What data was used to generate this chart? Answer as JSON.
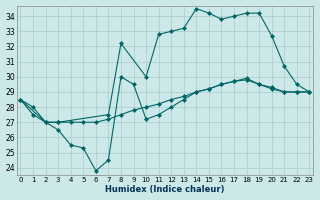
{
  "xlabel": "Humidex (Indice chaleur)",
  "bg_color": "#cce8e8",
  "grid_color": "#aacccc",
  "line_color": "#006666",
  "xlim": [
    -0.3,
    23.3
  ],
  "ylim": [
    23.5,
    34.7
  ],
  "xticks": [
    0,
    1,
    2,
    3,
    4,
    5,
    6,
    7,
    8,
    9,
    10,
    11,
    12,
    13,
    14,
    15,
    16,
    17,
    18,
    19,
    20,
    21,
    22,
    23
  ],
  "yticks": [
    24,
    25,
    26,
    27,
    28,
    29,
    30,
    31,
    32,
    33,
    34
  ],
  "series": [
    {
      "x": [
        0,
        1,
        2,
        3,
        4,
        5,
        6,
        7,
        8,
        9,
        10,
        11,
        12,
        13,
        14,
        15,
        16,
        17,
        18,
        19,
        20,
        21,
        22,
        23
      ],
      "y": [
        28.5,
        27.5,
        27.0,
        27.0,
        27.0,
        27.0,
        27.0,
        27.2,
        27.5,
        27.8,
        28.0,
        28.2,
        28.5,
        28.7,
        29.0,
        29.2,
        29.5,
        29.7,
        29.9,
        29.5,
        29.2,
        29.0,
        29.0,
        29.0
      ]
    },
    {
      "x": [
        0,
        1,
        2,
        3,
        4,
        5,
        6,
        7,
        8,
        9,
        10,
        11,
        12,
        13,
        14,
        15,
        16,
        17,
        18,
        19,
        20,
        21,
        22,
        23
      ],
      "y": [
        28.5,
        28.0,
        27.0,
        26.5,
        25.5,
        25.3,
        23.8,
        24.5,
        30.0,
        29.5,
        27.2,
        27.5,
        28.0,
        28.5,
        29.0,
        29.2,
        29.5,
        29.7,
        29.8,
        29.5,
        29.3,
        29.0,
        29.0,
        29.0
      ]
    },
    {
      "x": [
        0,
        2,
        3,
        7,
        8,
        10,
        11,
        12,
        13,
        14,
        15,
        16,
        17,
        18,
        19,
        20,
        21,
        22,
        23
      ],
      "y": [
        28.5,
        27.0,
        27.0,
        27.5,
        32.2,
        30.0,
        32.8,
        33.0,
        33.2,
        34.5,
        34.2,
        33.8,
        34.0,
        34.2,
        34.2,
        32.7,
        30.7,
        29.5,
        29.0
      ]
    }
  ]
}
